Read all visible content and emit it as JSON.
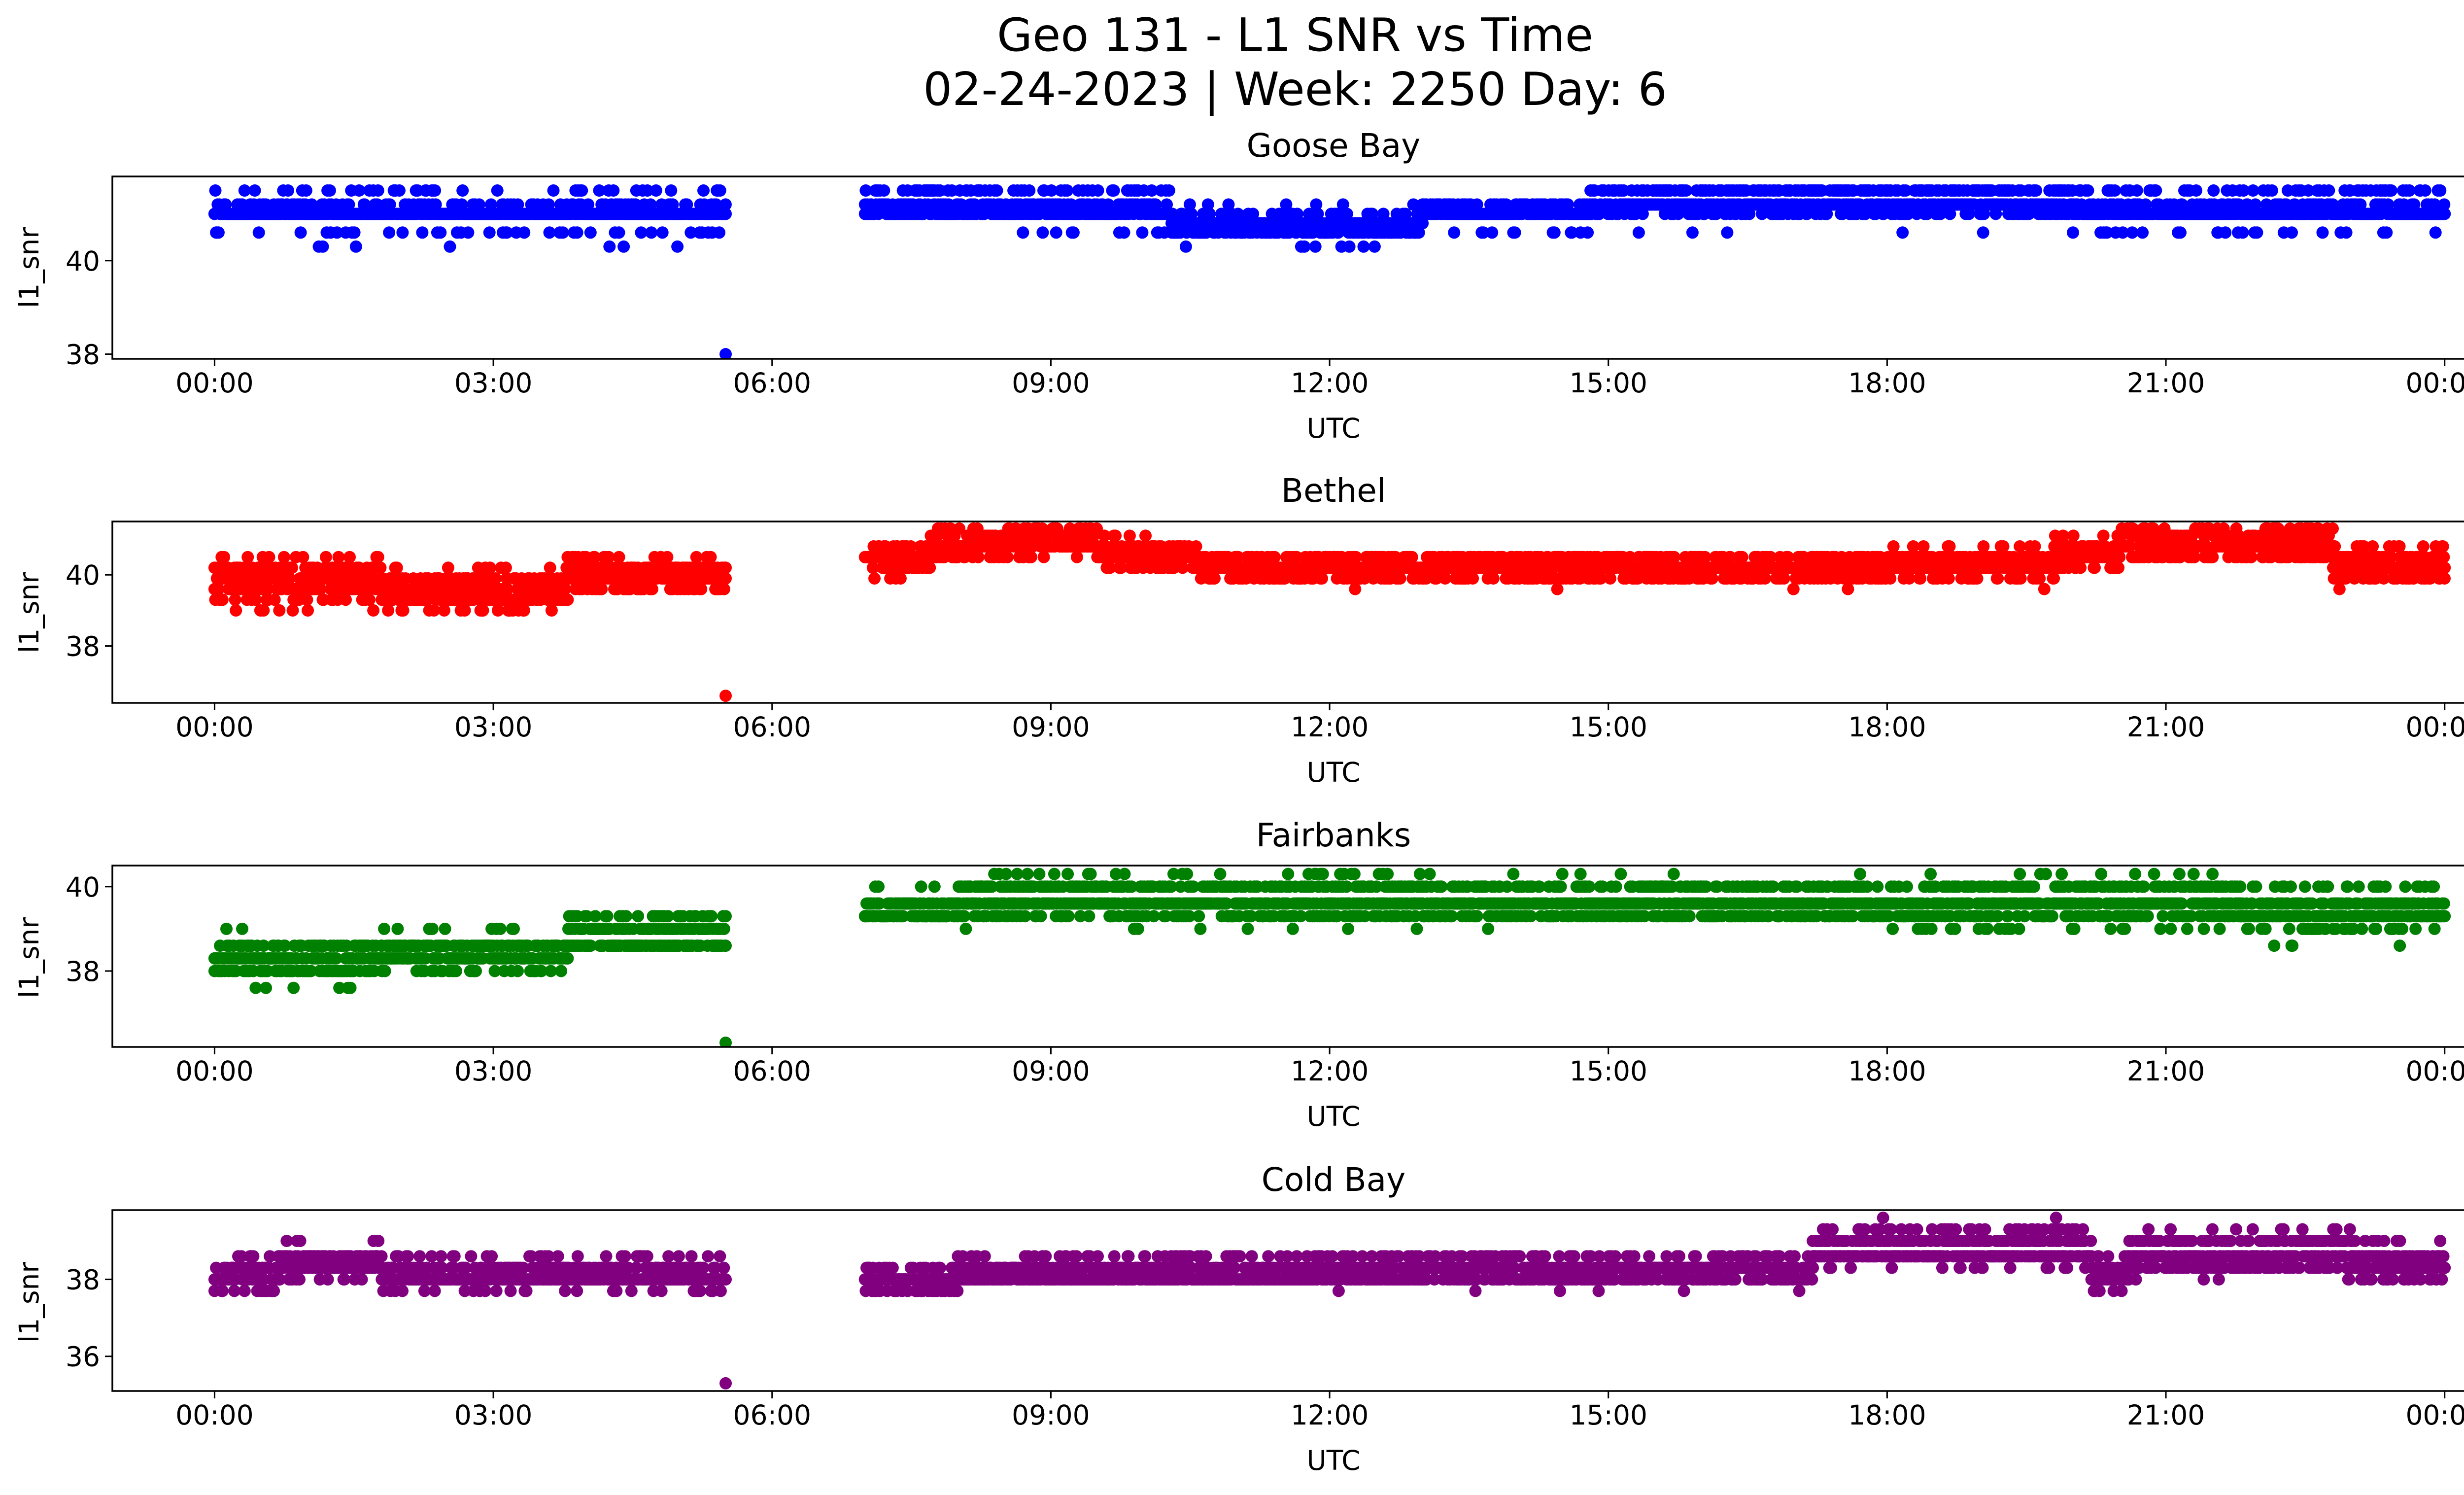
{
  "figure": {
    "title_line1": "Geo 131 - L1 SNR vs Time",
    "title_line2": "02-24-2023 | Week: 2250 Day: 6"
  },
  "chart_data": [
    {
      "type": "scatter",
      "title": "Goose Bay",
      "xlabel": "UTC",
      "ylabel": "l1_snr",
      "color": "#0000ff",
      "xticks": [
        "00:00",
        "03:00",
        "06:00",
        "09:00",
        "12:00",
        "15:00",
        "18:00",
        "21:00",
        "00:00"
      ],
      "xlim_hours": [
        -1.1,
        25.2
      ],
      "ylim": [
        37.9,
        41.8
      ],
      "yticks": [
        38,
        40
      ],
      "gap_hours": [
        5.5,
        7.0
      ],
      "outlier": {
        "x": "05:30",
        "y": 38.0
      },
      "segments": [
        {
          "start": 0.0,
          "end": 5.5,
          "levels": [
            {
              "y": 41.0,
              "w": 10
            },
            {
              "y": 41.2,
              "w": 3
            },
            {
              "y": 41.5,
              "w": 1
            },
            {
              "y": 40.6,
              "w": 1
            },
            {
              "y": 40.3,
              "w": 0.1
            }
          ]
        },
        {
          "start": 7.0,
          "end": 10.3,
          "levels": [
            {
              "y": 41.0,
              "w": 6
            },
            {
              "y": 41.2,
              "w": 4
            },
            {
              "y": 41.5,
              "w": 2
            },
            {
              "y": 40.6,
              "w": 0.5
            }
          ]
        },
        {
          "start": 10.3,
          "end": 13.0,
          "levels": [
            {
              "y": 40.8,
              "w": 6
            },
            {
              "y": 40.6,
              "w": 4
            },
            {
              "y": 41.0,
              "w": 2
            },
            {
              "y": 40.3,
              "w": 0.3
            },
            {
              "y": 41.2,
              "w": 0.3
            }
          ]
        },
        {
          "start": 13.0,
          "end": 14.8,
          "levels": [
            {
              "y": 41.0,
              "w": 6
            },
            {
              "y": 41.2,
              "w": 3
            },
            {
              "y": 40.6,
              "w": 0.5
            }
          ]
        },
        {
          "start": 14.8,
          "end": 20.0,
          "levels": [
            {
              "y": 41.2,
              "w": 6
            },
            {
              "y": 41.5,
              "w": 4
            },
            {
              "y": 41.0,
              "w": 3
            },
            {
              "y": 40.6,
              "w": 0.1
            }
          ]
        },
        {
          "start": 20.0,
          "end": 24.0,
          "levels": [
            {
              "y": 41.0,
              "w": 8
            },
            {
              "y": 41.2,
              "w": 3
            },
            {
              "y": 41.5,
              "w": 1.5
            },
            {
              "y": 40.6,
              "w": 1
            }
          ]
        }
      ]
    },
    {
      "type": "scatter",
      "title": "Bethel",
      "xlabel": "UTC",
      "ylabel": "l1_snr",
      "color": "#ff0000",
      "xticks": [
        "00:00",
        "03:00",
        "06:00",
        "09:00",
        "12:00",
        "15:00",
        "18:00",
        "21:00",
        "00:00"
      ],
      "xlim_hours": [
        -1.1,
        25.2
      ],
      "ylim": [
        36.4,
        41.5
      ],
      "yticks": [
        38,
        40
      ],
      "gap_hours": [
        5.5,
        7.0
      ],
      "outlier": {
        "x": "05:30",
        "y": 36.6
      },
      "segments": [
        {
          "start": 0.0,
          "end": 1.8,
          "levels": [
            {
              "y": 39.6,
              "w": 5
            },
            {
              "y": 39.9,
              "w": 5
            },
            {
              "y": 40.2,
              "w": 4
            },
            {
              "y": 39.3,
              "w": 2
            },
            {
              "y": 40.5,
              "w": 1
            },
            {
              "y": 39.0,
              "w": 0.5
            }
          ]
        },
        {
          "start": 1.8,
          "end": 3.8,
          "levels": [
            {
              "y": 39.3,
              "w": 5
            },
            {
              "y": 39.6,
              "w": 5
            },
            {
              "y": 39.9,
              "w": 3
            },
            {
              "y": 39.0,
              "w": 1.5
            },
            {
              "y": 40.2,
              "w": 0.5
            }
          ]
        },
        {
          "start": 3.8,
          "end": 5.5,
          "levels": [
            {
              "y": 39.9,
              "w": 5
            },
            {
              "y": 40.2,
              "w": 5
            },
            {
              "y": 39.6,
              "w": 3
            },
            {
              "y": 40.5,
              "w": 1
            }
          ]
        },
        {
          "start": 7.0,
          "end": 7.7,
          "levels": [
            {
              "y": 40.5,
              "w": 5
            },
            {
              "y": 40.2,
              "w": 3
            },
            {
              "y": 40.8,
              "w": 2
            },
            {
              "y": 39.9,
              "w": 0.5
            }
          ]
        },
        {
          "start": 7.7,
          "end": 9.5,
          "levels": [
            {
              "y": 40.8,
              "w": 5
            },
            {
              "y": 41.1,
              "w": 3
            },
            {
              "y": 40.5,
              "w": 2
            },
            {
              "y": 41.3,
              "w": 1.5
            }
          ]
        },
        {
          "start": 9.5,
          "end": 10.6,
          "levels": [
            {
              "y": 40.5,
              "w": 5
            },
            {
              "y": 40.8,
              "w": 3
            },
            {
              "y": 40.2,
              "w": 2
            },
            {
              "y": 41.1,
              "w": 0.5
            }
          ]
        },
        {
          "start": 10.6,
          "end": 18.0,
          "levels": [
            {
              "y": 40.2,
              "w": 6
            },
            {
              "y": 40.5,
              "w": 3
            },
            {
              "y": 39.9,
              "w": 3
            },
            {
              "y": 39.6,
              "w": 0.05
            }
          ]
        },
        {
          "start": 18.0,
          "end": 19.8,
          "levels": [
            {
              "y": 40.2,
              "w": 5
            },
            {
              "y": 40.5,
              "w": 4
            },
            {
              "y": 39.9,
              "w": 2
            },
            {
              "y": 40.8,
              "w": 0.5
            },
            {
              "y": 39.6,
              "w": 0.1
            }
          ]
        },
        {
          "start": 19.8,
          "end": 20.5,
          "levels": [
            {
              "y": 40.5,
              "w": 5
            },
            {
              "y": 40.8,
              "w": 3
            },
            {
              "y": 41.1,
              "w": 1
            },
            {
              "y": 40.2,
              "w": 1
            }
          ]
        },
        {
          "start": 20.5,
          "end": 22.8,
          "levels": [
            {
              "y": 40.8,
              "w": 5
            },
            {
              "y": 41.1,
              "w": 4
            },
            {
              "y": 40.5,
              "w": 3
            },
            {
              "y": 41.3,
              "w": 1.5
            }
          ]
        },
        {
          "start": 22.8,
          "end": 24.0,
          "levels": [
            {
              "y": 40.2,
              "w": 4
            },
            {
              "y": 40.5,
              "w": 4
            },
            {
              "y": 39.9,
              "w": 2
            },
            {
              "y": 40.8,
              "w": 1
            },
            {
              "y": 39.6,
              "w": 0.3
            }
          ]
        }
      ]
    },
    {
      "type": "scatter",
      "title": "Fairbanks",
      "xlabel": "UTC",
      "ylabel": "l1_snr",
      "color": "#008000",
      "xticks": [
        "00:00",
        "03:00",
        "06:00",
        "09:00",
        "12:00",
        "15:00",
        "18:00",
        "21:00",
        "00:00"
      ],
      "xlim_hours": [
        -1.1,
        25.2
      ],
      "ylim": [
        36.2,
        40.5
      ],
      "yticks": [
        38,
        40
      ],
      "gap_hours": [
        5.5,
        7.0
      ],
      "outlier": {
        "x": "05:30",
        "y": 36.3
      },
      "segments": [
        {
          "start": 0.0,
          "end": 1.8,
          "levels": [
            {
              "y": 38.0,
              "w": 5
            },
            {
              "y": 38.3,
              "w": 5
            },
            {
              "y": 38.6,
              "w": 3
            },
            {
              "y": 39.0,
              "w": 0.5
            },
            {
              "y": 37.6,
              "w": 0.4
            }
          ]
        },
        {
          "start": 1.8,
          "end": 3.8,
          "levels": [
            {
              "y": 38.3,
              "w": 5
            },
            {
              "y": 38.6,
              "w": 5
            },
            {
              "y": 38.0,
              "w": 1
            },
            {
              "y": 39.0,
              "w": 0.5
            }
          ]
        },
        {
          "start": 3.8,
          "end": 5.5,
          "levels": [
            {
              "y": 38.6,
              "w": 5
            },
            {
              "y": 39.0,
              "w": 4
            },
            {
              "y": 39.3,
              "w": 2
            }
          ]
        },
        {
          "start": 7.0,
          "end": 8.0,
          "levels": [
            {
              "y": 39.3,
              "w": 5
            },
            {
              "y": 39.6,
              "w": 4
            },
            {
              "y": 40.0,
              "w": 0.5
            }
          ]
        },
        {
          "start": 8.0,
          "end": 13.0,
          "levels": [
            {
              "y": 39.6,
              "w": 5
            },
            {
              "y": 40.0,
              "w": 4
            },
            {
              "y": 39.3,
              "w": 2
            },
            {
              "y": 40.3,
              "w": 0.5
            },
            {
              "y": 39.0,
              "w": 0.1
            }
          ]
        },
        {
          "start": 13.0,
          "end": 18.0,
          "levels": [
            {
              "y": 39.6,
              "w": 5
            },
            {
              "y": 39.3,
              "w": 3
            },
            {
              "y": 40.0,
              "w": 3
            },
            {
              "y": 40.3,
              "w": 0.1
            },
            {
              "y": 39.0,
              "w": 0.1
            }
          ]
        },
        {
          "start": 18.0,
          "end": 21.8,
          "levels": [
            {
              "y": 39.6,
              "w": 5
            },
            {
              "y": 39.3,
              "w": 3
            },
            {
              "y": 40.0,
              "w": 3
            },
            {
              "y": 39.0,
              "w": 0.8
            },
            {
              "y": 40.3,
              "w": 0.2
            }
          ]
        },
        {
          "start": 21.8,
          "end": 24.0,
          "levels": [
            {
              "y": 39.3,
              "w": 5
            },
            {
              "y": 39.6,
              "w": 4
            },
            {
              "y": 39.0,
              "w": 2
            },
            {
              "y": 40.0,
              "w": 1.5
            },
            {
              "y": 38.6,
              "w": 0.3
            }
          ]
        }
      ]
    },
    {
      "type": "scatter",
      "title": "Cold Bay",
      "xlabel": "UTC",
      "ylabel": "l1_snr",
      "color": "#800080",
      "xticks": [
        "00:00",
        "03:00",
        "06:00",
        "09:00",
        "12:00",
        "15:00",
        "18:00",
        "21:00",
        "00:00"
      ],
      "xlim_hours": [
        -1.1,
        25.2
      ],
      "ylim": [
        35.1,
        39.8
      ],
      "yticks": [
        36,
        38
      ],
      "gap_hours": [
        5.5,
        7.0
      ],
      "outlier": {
        "x": "05:30",
        "y": 35.3
      },
      "segments": [
        {
          "start": 0.0,
          "end": 0.7,
          "levels": [
            {
              "y": 38.0,
              "w": 5
            },
            {
              "y": 38.3,
              "w": 4
            },
            {
              "y": 37.7,
              "w": 2
            },
            {
              "y": 38.6,
              "w": 1
            }
          ]
        },
        {
          "start": 0.7,
          "end": 1.8,
          "levels": [
            {
              "y": 38.3,
              "w": 5
            },
            {
              "y": 38.6,
              "w": 4
            },
            {
              "y": 38.0,
              "w": 1
            },
            {
              "y": 39.0,
              "w": 0.4
            }
          ]
        },
        {
          "start": 1.8,
          "end": 5.5,
          "levels": [
            {
              "y": 38.0,
              "w": 6
            },
            {
              "y": 38.3,
              "w": 4
            },
            {
              "y": 38.6,
              "w": 1
            },
            {
              "y": 37.7,
              "w": 0.5
            }
          ]
        },
        {
          "start": 7.0,
          "end": 8.0,
          "levels": [
            {
              "y": 38.0,
              "w": 5
            },
            {
              "y": 37.7,
              "w": 3
            },
            {
              "y": 38.3,
              "w": 2
            }
          ]
        },
        {
          "start": 8.0,
          "end": 13.0,
          "levels": [
            {
              "y": 38.0,
              "w": 6
            },
            {
              "y": 38.3,
              "w": 4
            },
            {
              "y": 38.6,
              "w": 1
            },
            {
              "y": 37.7,
              "w": 0.1
            }
          ]
        },
        {
          "start": 13.0,
          "end": 17.2,
          "levels": [
            {
              "y": 38.3,
              "w": 5
            },
            {
              "y": 38.0,
              "w": 4
            },
            {
              "y": 38.6,
              "w": 2
            },
            {
              "y": 37.7,
              "w": 0.1
            },
            {
              "y": 39.0,
              "w": 0.05
            }
          ]
        },
        {
          "start": 17.2,
          "end": 20.2,
          "levels": [
            {
              "y": 38.6,
              "w": 5
            },
            {
              "y": 39.0,
              "w": 4
            },
            {
              "y": 39.3,
              "w": 1.5
            },
            {
              "y": 38.3,
              "w": 0.5
            },
            {
              "y": 39.6,
              "w": 0.1
            }
          ]
        },
        {
          "start": 20.2,
          "end": 20.6,
          "levels": [
            {
              "y": 38.0,
              "w": 4
            },
            {
              "y": 38.3,
              "w": 4
            },
            {
              "y": 38.6,
              "w": 2
            },
            {
              "y": 37.7,
              "w": 1
            }
          ]
        },
        {
          "start": 20.6,
          "end": 23.0,
          "levels": [
            {
              "y": 38.6,
              "w": 5
            },
            {
              "y": 39.0,
              "w": 3
            },
            {
              "y": 38.3,
              "w": 3
            },
            {
              "y": 39.3,
              "w": 0.5
            },
            {
              "y": 38.0,
              "w": 0.3
            }
          ]
        },
        {
          "start": 23.0,
          "end": 24.0,
          "levels": [
            {
              "y": 38.3,
              "w": 5
            },
            {
              "y": 38.6,
              "w": 3
            },
            {
              "y": 38.0,
              "w": 2
            },
            {
              "y": 39.0,
              "w": 0.5
            }
          ]
        }
      ]
    }
  ]
}
